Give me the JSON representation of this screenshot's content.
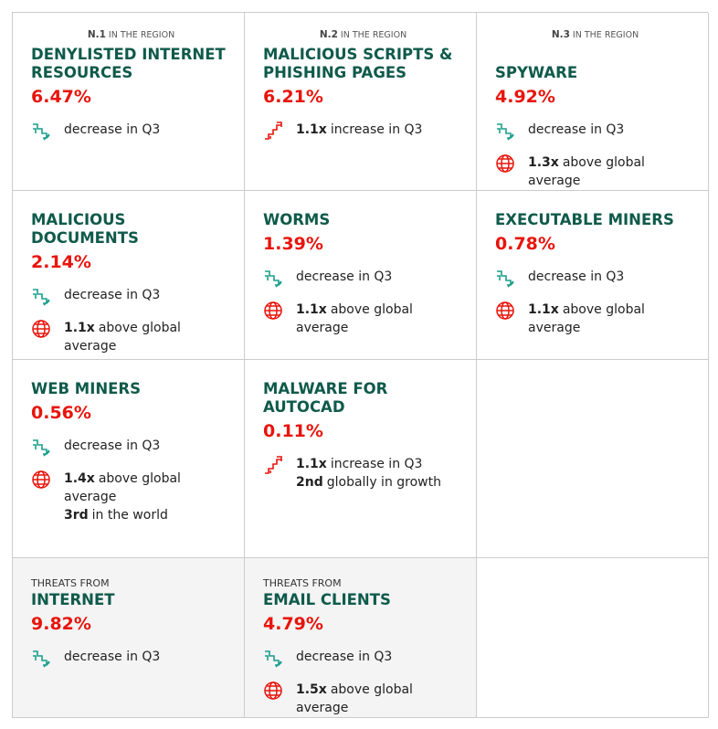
{
  "rows": [
    {
      "cells": [
        {
          "rank": "N.1",
          "rank_note": "IN THE REGION",
          "title": "DENYLISTED INTERNET RESOURCES",
          "value": "6.47%",
          "stats": [
            {
              "icon": "decrease",
              "lines": [
                {
                  "text": "decrease in Q3"
                }
              ]
            }
          ]
        },
        {
          "rank": "N.2",
          "rank_note": "IN THE REGION",
          "title": "MALICIOUS SCRIPTS & PHISHING PAGES",
          "value": "6.21%",
          "stats": [
            {
              "icon": "increase",
              "lines": [
                {
                  "bold": "1.1x",
                  "text": "increase in Q3"
                }
              ]
            }
          ]
        },
        {
          "rank": "N.3",
          "rank_note": "IN THE REGION",
          "title": "SPYWARE",
          "value": "4.92%",
          "stats": [
            {
              "icon": "decrease",
              "lines": [
                {
                  "text": "decrease in Q3"
                }
              ]
            },
            {
              "icon": "globe",
              "lines": [
                {
                  "bold": "1.3x",
                  "text": "above global average"
                }
              ]
            }
          ]
        }
      ]
    },
    {
      "cells": [
        {
          "title": "MALICIOUS DOCUMENTS",
          "value": "2.14%",
          "stats": [
            {
              "icon": "decrease",
              "lines": [
                {
                  "text": "decrease in Q3"
                }
              ]
            },
            {
              "icon": "globe",
              "lines": [
                {
                  "bold": "1.1x",
                  "text": "above global average"
                }
              ]
            }
          ]
        },
        {
          "title": "WORMS",
          "value": "1.39%",
          "stats": [
            {
              "icon": "decrease",
              "lines": [
                {
                  "text": "decrease in Q3"
                }
              ]
            },
            {
              "icon": "globe",
              "lines": [
                {
                  "bold": "1.1x",
                  "text": "above global average"
                }
              ]
            }
          ]
        },
        {
          "title": "EXECUTABLE MINERS",
          "value": "0.78%",
          "stats": [
            {
              "icon": "decrease",
              "lines": [
                {
                  "text": "decrease in Q3"
                }
              ]
            },
            {
              "icon": "globe",
              "lines": [
                {
                  "bold": "1.1x",
                  "text": "above global average"
                }
              ]
            }
          ]
        }
      ]
    },
    {
      "cells": [
        {
          "title": "WEB MINERS",
          "value": "0.56%",
          "stats": [
            {
              "icon": "decrease",
              "lines": [
                {
                  "text": "decrease in Q3"
                }
              ]
            },
            {
              "icon": "globe",
              "lines": [
                {
                  "bold": "1.4x",
                  "text": "above global average"
                },
                {
                  "bold": "3rd",
                  "text": "in the world"
                }
              ]
            }
          ]
        },
        {
          "title": "MALWARE FOR AUTOCAD",
          "value": "0.11%",
          "stats": [
            {
              "icon": "increase",
              "lines": [
                {
                  "bold": "1.1x",
                  "text": "increase in Q3"
                },
                {
                  "bold": "2nd",
                  "text": "globally in growth"
                }
              ]
            }
          ]
        }
      ]
    },
    {
      "shaded": true,
      "cells": [
        {
          "label": "THREATS FROM",
          "title": "INTERNET",
          "value": "9.82%",
          "stats": [
            {
              "icon": "decrease",
              "lines": [
                {
                  "text": "decrease in Q3"
                }
              ]
            }
          ]
        },
        {
          "label": "THREATS FROM",
          "title": "EMAIL CLIENTS",
          "value": "4.79%",
          "stats": [
            {
              "icon": "decrease",
              "lines": [
                {
                  "text": "decrease in Q3"
                }
              ]
            },
            {
              "icon": "globe",
              "lines": [
                {
                  "bold": "1.5x",
                  "text": "above global average"
                }
              ]
            }
          ]
        }
      ]
    }
  ]
}
